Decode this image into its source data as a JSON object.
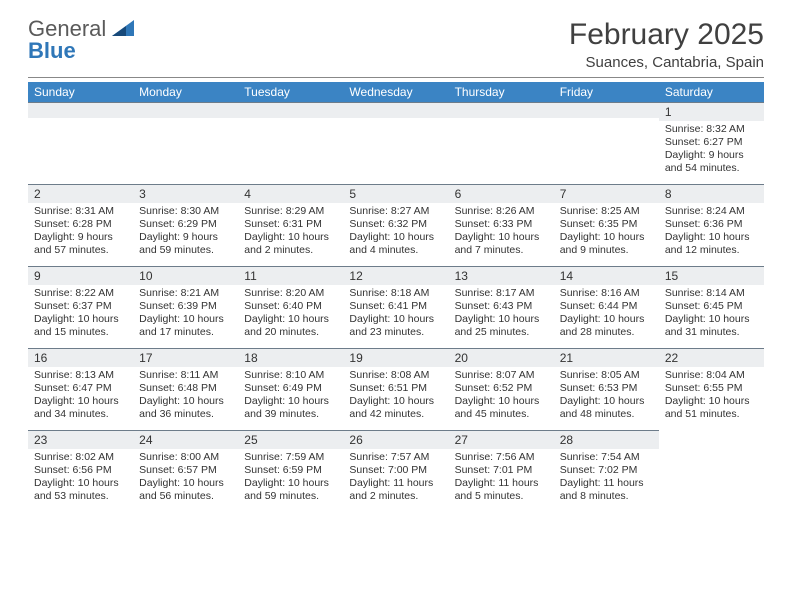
{
  "brand": {
    "line1": "General",
    "line2": "Blue"
  },
  "title": "February 2025",
  "subtitle": "Suances, Cantabria, Spain",
  "colors": {
    "header_bg": "#3b84c4",
    "daynum_bg": "#eceef0",
    "rule": "#6d7c8a",
    "text": "#333333",
    "brand_blue": "#2f77b8"
  },
  "columns": [
    "Sunday",
    "Monday",
    "Tuesday",
    "Wednesday",
    "Thursday",
    "Friday",
    "Saturday"
  ],
  "weeks": [
    [
      null,
      null,
      null,
      null,
      null,
      null,
      {
        "n": "1",
        "sr": "8:32 AM",
        "ss": "6:27 PM",
        "d1": "9 hours",
        "d2": "and 54 minutes."
      }
    ],
    [
      {
        "n": "2",
        "sr": "8:31 AM",
        "ss": "6:28 PM",
        "d1": "9 hours",
        "d2": "and 57 minutes."
      },
      {
        "n": "3",
        "sr": "8:30 AM",
        "ss": "6:29 PM",
        "d1": "9 hours",
        "d2": "and 59 minutes."
      },
      {
        "n": "4",
        "sr": "8:29 AM",
        "ss": "6:31 PM",
        "d1": "10 hours",
        "d2": "and 2 minutes."
      },
      {
        "n": "5",
        "sr": "8:27 AM",
        "ss": "6:32 PM",
        "d1": "10 hours",
        "d2": "and 4 minutes."
      },
      {
        "n": "6",
        "sr": "8:26 AM",
        "ss": "6:33 PM",
        "d1": "10 hours",
        "d2": "and 7 minutes."
      },
      {
        "n": "7",
        "sr": "8:25 AM",
        "ss": "6:35 PM",
        "d1": "10 hours",
        "d2": "and 9 minutes."
      },
      {
        "n": "8",
        "sr": "8:24 AM",
        "ss": "6:36 PM",
        "d1": "10 hours",
        "d2": "and 12 minutes."
      }
    ],
    [
      {
        "n": "9",
        "sr": "8:22 AM",
        "ss": "6:37 PM",
        "d1": "10 hours",
        "d2": "and 15 minutes."
      },
      {
        "n": "10",
        "sr": "8:21 AM",
        "ss": "6:39 PM",
        "d1": "10 hours",
        "d2": "and 17 minutes."
      },
      {
        "n": "11",
        "sr": "8:20 AM",
        "ss": "6:40 PM",
        "d1": "10 hours",
        "d2": "and 20 minutes."
      },
      {
        "n": "12",
        "sr": "8:18 AM",
        "ss": "6:41 PM",
        "d1": "10 hours",
        "d2": "and 23 minutes."
      },
      {
        "n": "13",
        "sr": "8:17 AM",
        "ss": "6:43 PM",
        "d1": "10 hours",
        "d2": "and 25 minutes."
      },
      {
        "n": "14",
        "sr": "8:16 AM",
        "ss": "6:44 PM",
        "d1": "10 hours",
        "d2": "and 28 minutes."
      },
      {
        "n": "15",
        "sr": "8:14 AM",
        "ss": "6:45 PM",
        "d1": "10 hours",
        "d2": "and 31 minutes."
      }
    ],
    [
      {
        "n": "16",
        "sr": "8:13 AM",
        "ss": "6:47 PM",
        "d1": "10 hours",
        "d2": "and 34 minutes."
      },
      {
        "n": "17",
        "sr": "8:11 AM",
        "ss": "6:48 PM",
        "d1": "10 hours",
        "d2": "and 36 minutes."
      },
      {
        "n": "18",
        "sr": "8:10 AM",
        "ss": "6:49 PM",
        "d1": "10 hours",
        "d2": "and 39 minutes."
      },
      {
        "n": "19",
        "sr": "8:08 AM",
        "ss": "6:51 PM",
        "d1": "10 hours",
        "d2": "and 42 minutes."
      },
      {
        "n": "20",
        "sr": "8:07 AM",
        "ss": "6:52 PM",
        "d1": "10 hours",
        "d2": "and 45 minutes."
      },
      {
        "n": "21",
        "sr": "8:05 AM",
        "ss": "6:53 PM",
        "d1": "10 hours",
        "d2": "and 48 minutes."
      },
      {
        "n": "22",
        "sr": "8:04 AM",
        "ss": "6:55 PM",
        "d1": "10 hours",
        "d2": "and 51 minutes."
      }
    ],
    [
      {
        "n": "23",
        "sr": "8:02 AM",
        "ss": "6:56 PM",
        "d1": "10 hours",
        "d2": "and 53 minutes."
      },
      {
        "n": "24",
        "sr": "8:00 AM",
        "ss": "6:57 PM",
        "d1": "10 hours",
        "d2": "and 56 minutes."
      },
      {
        "n": "25",
        "sr": "7:59 AM",
        "ss": "6:59 PM",
        "d1": "10 hours",
        "d2": "and 59 minutes."
      },
      {
        "n": "26",
        "sr": "7:57 AM",
        "ss": "7:00 PM",
        "d1": "11 hours",
        "d2": "and 2 minutes."
      },
      {
        "n": "27",
        "sr": "7:56 AM",
        "ss": "7:01 PM",
        "d1": "11 hours",
        "d2": "and 5 minutes."
      },
      {
        "n": "28",
        "sr": "7:54 AM",
        "ss": "7:02 PM",
        "d1": "11 hours",
        "d2": "and 8 minutes."
      },
      null
    ]
  ],
  "labels": {
    "sunrise": "Sunrise:",
    "sunset": "Sunset:",
    "daylight": "Daylight:"
  }
}
